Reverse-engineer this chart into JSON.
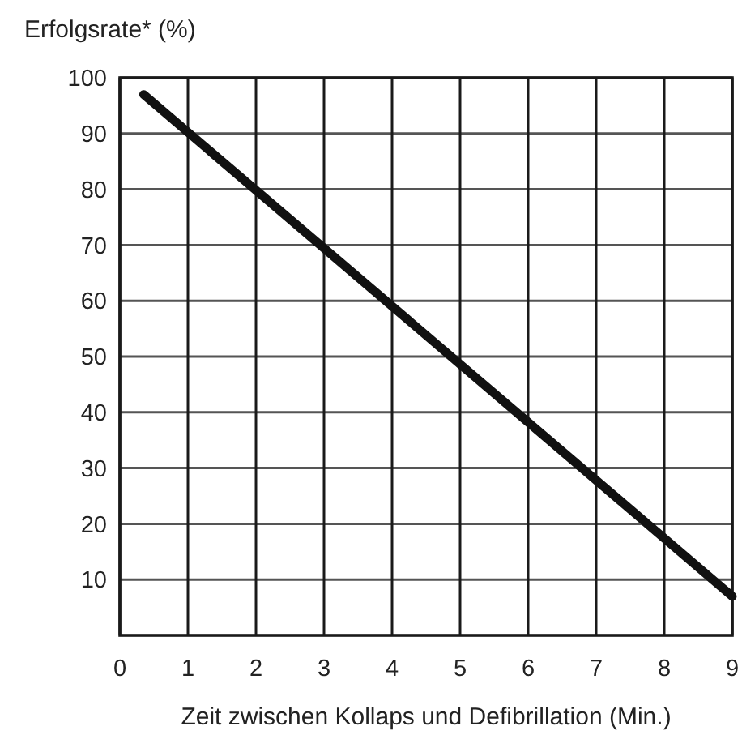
{
  "chart_data": {
    "type": "line",
    "ylabel": "Erfolgsrate* (%)",
    "xlabel": "Zeit zwischen Kollaps und Defibrillation (Min.)",
    "x": [
      0.35,
      9
    ],
    "series": [
      {
        "color": "#111111",
        "values": [
          97,
          7
        ]
      }
    ],
    "xlim": [
      0,
      9
    ],
    "xticks": [
      0,
      1,
      2,
      3,
      4,
      5,
      6,
      7,
      8,
      9
    ],
    "ylim": [
      0,
      100
    ],
    "yticks": [
      10,
      20,
      30,
      40,
      50,
      60,
      70,
      80,
      90,
      100
    ],
    "grid": true,
    "marker": "none",
    "line_style": "solid"
  }
}
